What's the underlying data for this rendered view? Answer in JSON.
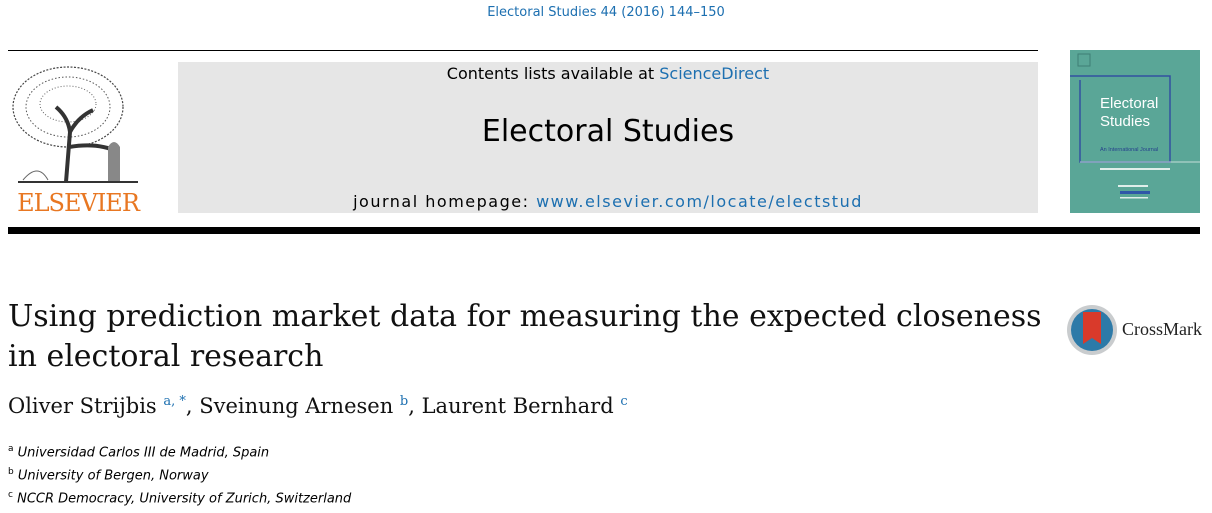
{
  "citation": "Electoral Studies 44 (2016) 144–150",
  "publisher_logo": {
    "text": "ELSEVIER",
    "icon": "elsevier-tree-icon",
    "color": "#e87722"
  },
  "banner": {
    "contents_prefix": "Contents lists available at ",
    "contents_link": "ScienceDirect",
    "journal_title": "Electoral Studies",
    "homepage_prefix": "journal homepage: ",
    "homepage_link": "www.elsevier.com/locate/electstud",
    "link_color": "#1c6fb0"
  },
  "cover": {
    "title_line1": "Electoral",
    "title_line2": "Studies",
    "subtitle": "An International Journal",
    "color": "#5aa697"
  },
  "article": {
    "title": "Using prediction market data for measuring the expected closeness in electoral research",
    "authors": [
      {
        "name": "Oliver Strijbis",
        "sup": "a, *"
      },
      {
        "name": "Sveinung Arnesen",
        "sup": "b"
      },
      {
        "name": "Laurent Bernhard",
        "sup": "c"
      }
    ],
    "affiliations": [
      {
        "sup": "a",
        "text": "Universidad Carlos III de Madrid, Spain"
      },
      {
        "sup": "b",
        "text": "University of Bergen, Norway"
      },
      {
        "sup": "c",
        "text": "NCCR Democracy, University of Zurich, Switzerland"
      }
    ]
  },
  "crossmark": {
    "label": "CrossMark",
    "icon": "crossmark-icon"
  }
}
